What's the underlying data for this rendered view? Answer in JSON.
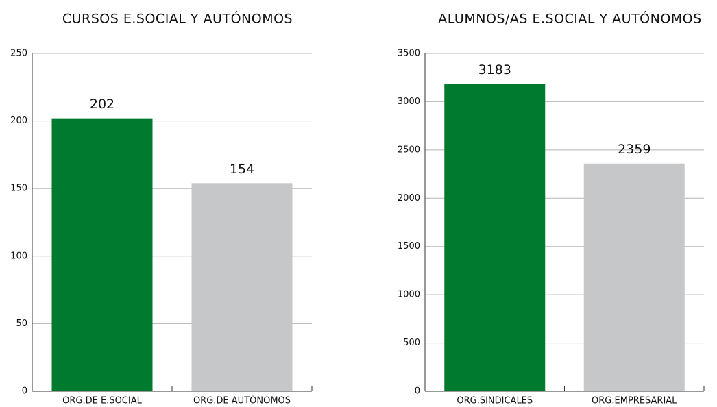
{
  "chart_data": [
    {
      "type": "bar",
      "title": "CURSOS E.SOCIAL Y AUTÓNOMOS",
      "categories": [
        "ORG.DE E.SOCIAL",
        "ORG.DE AUTÓNOMOS"
      ],
      "values": [
        202,
        154
      ],
      "colors": [
        "#007a2f",
        "#c6c7c9"
      ],
      "ylim": [
        0,
        250
      ],
      "yticks": [
        0,
        50,
        100,
        150,
        200,
        250
      ],
      "grid": true
    },
    {
      "type": "bar",
      "title": "ALUMNOS/AS E.SOCIAL Y AUTÓNOMOS",
      "categories": [
        "ORG.SINDICALES",
        "ORG.EMPRESARIAL"
      ],
      "values": [
        3183,
        2359
      ],
      "colors": [
        "#007a2f",
        "#c6c7c9"
      ],
      "ylim": [
        0,
        3500
      ],
      "yticks": [
        0,
        500,
        1000,
        1500,
        2000,
        2500,
        3000,
        3500
      ],
      "grid": true
    }
  ]
}
